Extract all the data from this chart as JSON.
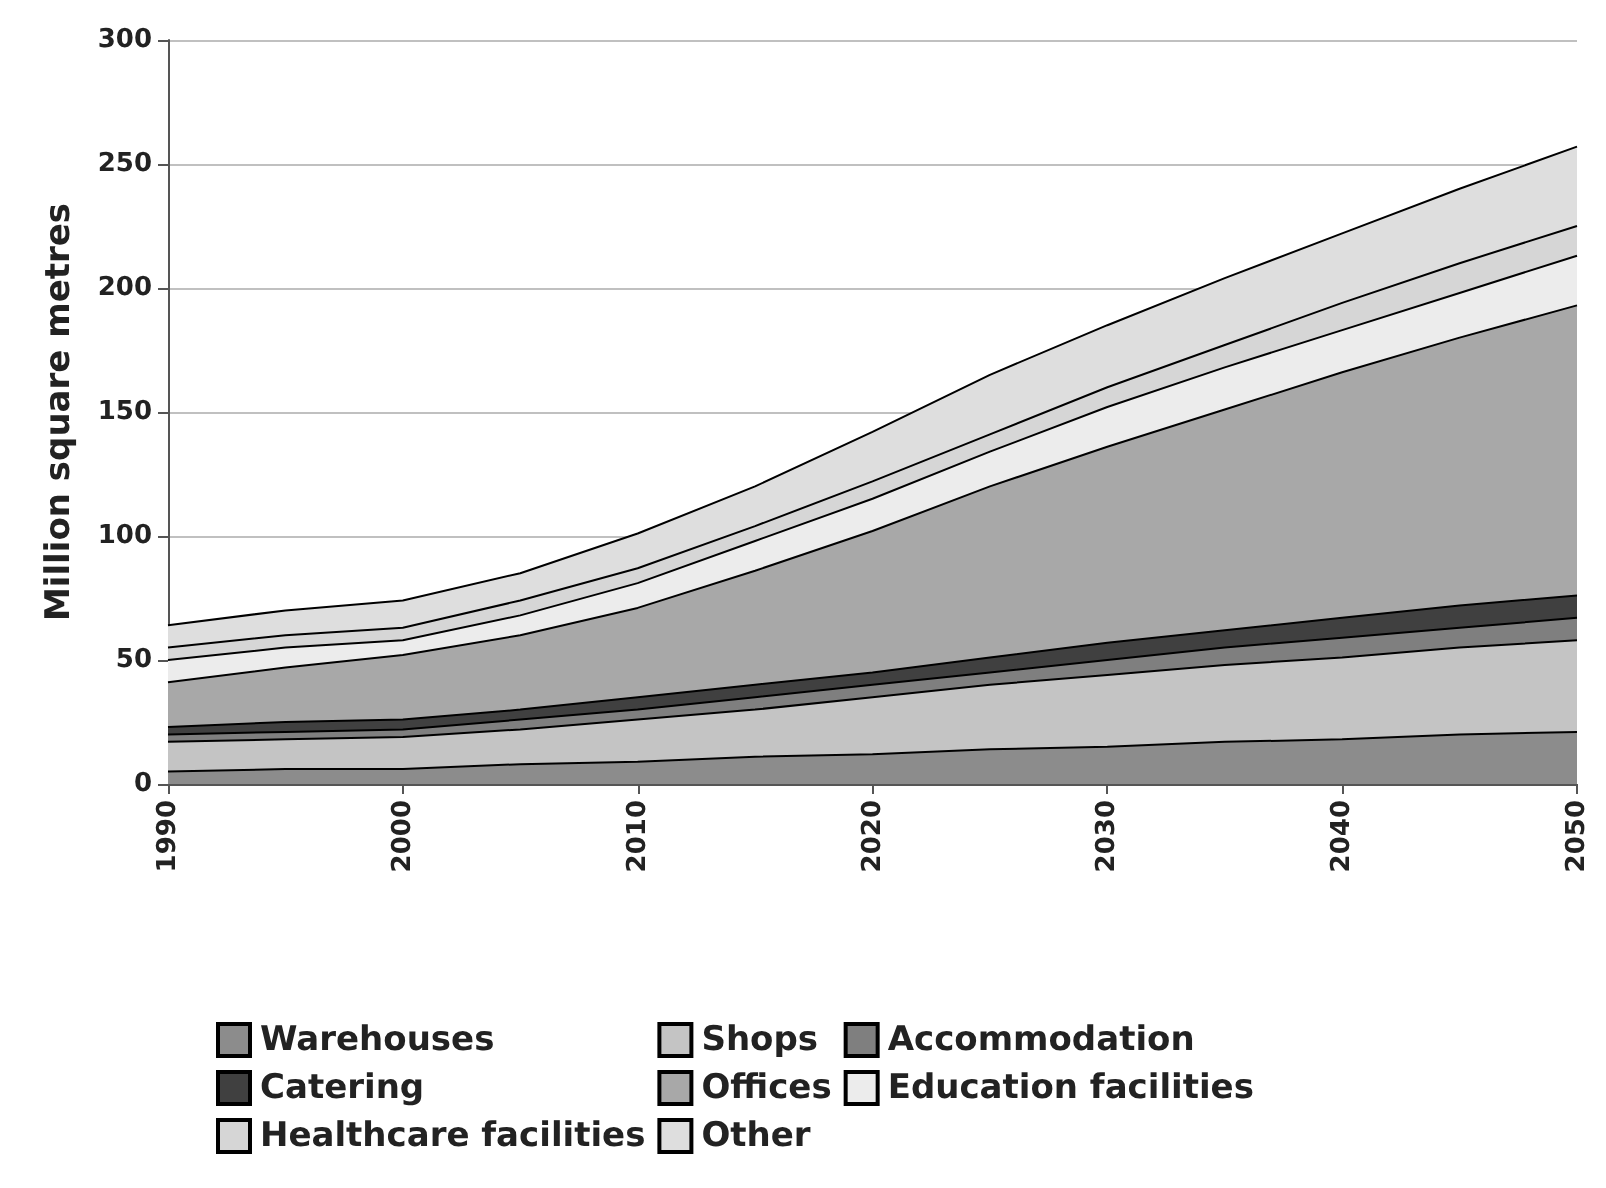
{
  "chart_data": {
    "type": "area",
    "stacked": true,
    "ylabel": "Million square metres",
    "x": [
      1990,
      1995,
      2000,
      2005,
      2010,
      2015,
      2020,
      2025,
      2030,
      2035,
      2040,
      2045,
      2050
    ],
    "xlim": [
      1990,
      2050
    ],
    "xticks": [
      1990,
      2000,
      2010,
      2020,
      2030,
      2040,
      2050
    ],
    "ylim": [
      0,
      300
    ],
    "yticks": [
      0,
      50,
      100,
      150,
      200,
      250,
      300
    ],
    "grid": "y",
    "legend": "bottom",
    "series": [
      {
        "name": "Warehouses",
        "color": "#8c8c8c",
        "values": [
          5,
          6,
          6,
          8,
          9,
          11,
          12,
          14,
          15,
          17,
          18,
          20,
          21
        ]
      },
      {
        "name": "Shops",
        "color": "#c4c4c4",
        "values": [
          12,
          12,
          13,
          14,
          17,
          19,
          23,
          26,
          29,
          31,
          33,
          35,
          37
        ]
      },
      {
        "name": "Accommodation",
        "color": "#7f7f7f",
        "values": [
          3,
          3,
          3,
          4,
          4,
          5,
          5,
          5,
          6,
          7,
          8,
          8,
          9
        ]
      },
      {
        "name": "Catering",
        "color": "#404040",
        "values": [
          3,
          4,
          4,
          4,
          5,
          5,
          5,
          6,
          7,
          7,
          8,
          9,
          9
        ]
      },
      {
        "name": "Offices",
        "color": "#a8a8a8",
        "values": [
          18,
          22,
          26,
          30,
          36,
          46,
          57,
          69,
          79,
          89,
          99,
          108,
          117
        ]
      },
      {
        "name": "Education facilities",
        "color": "#ececec",
        "values": [
          9,
          8,
          6,
          8,
          10,
          12,
          13,
          14,
          16,
          17,
          17,
          18,
          20
        ]
      },
      {
        "name": "Healthcare facilities",
        "color": "#d6d6d6",
        "values": [
          5,
          5,
          5,
          6,
          6,
          6,
          7,
          7,
          8,
          9,
          11,
          12,
          12
        ]
      },
      {
        "name": "Other",
        "color": "#dedede",
        "values": [
          9,
          10,
          11,
          11,
          14,
          16,
          20,
          24,
          25,
          27,
          28,
          30,
          32
        ]
      }
    ]
  }
}
